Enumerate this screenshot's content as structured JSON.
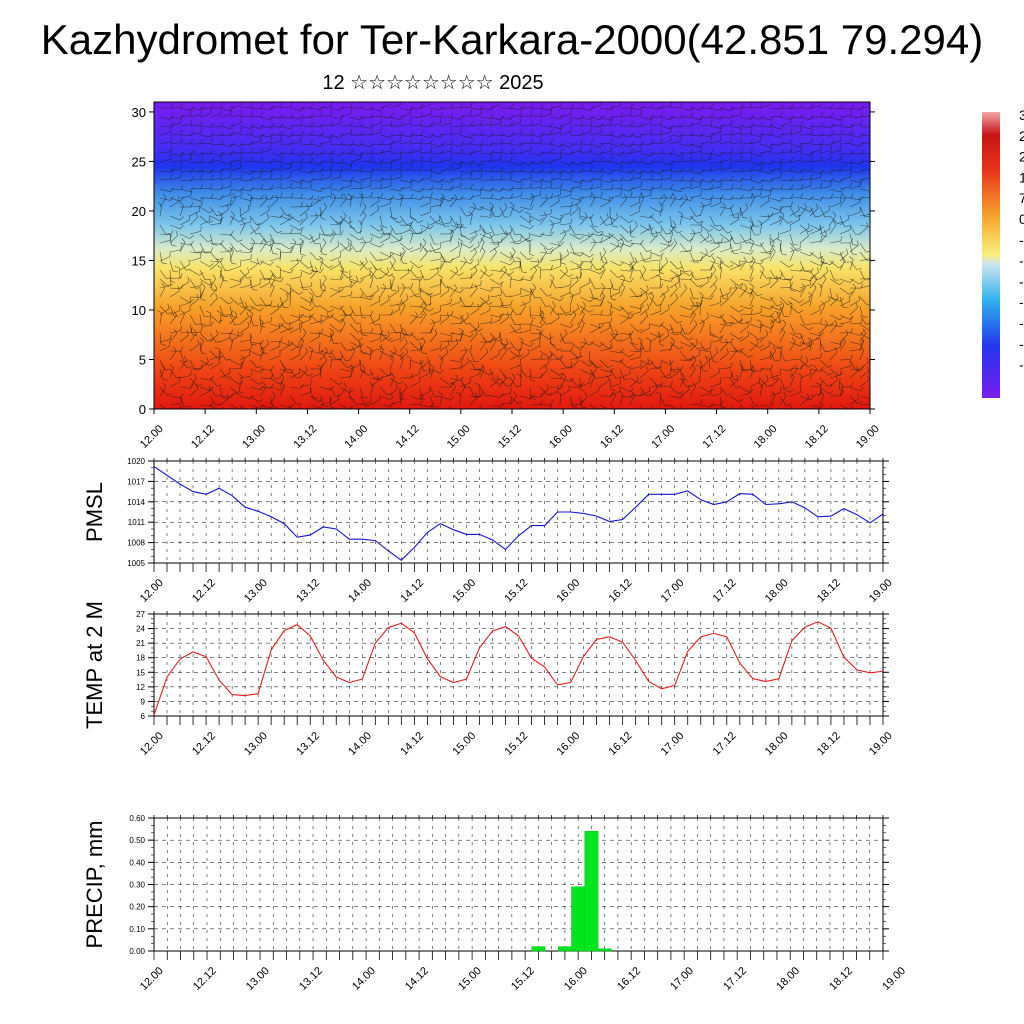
{
  "header": {
    "title": "Kazhydromet for Ter-Karkara-2000(42.851 79.294)",
    "subtitle": "12 ☆☆☆☆☆☆☆☆ 2025"
  },
  "time_ticks": [
    "12.00",
    "12.12",
    "13.00",
    "13.12",
    "14.00",
    "14.12",
    "15.00",
    "15.12",
    "16.00",
    "16.12",
    "17.00",
    "17.12",
    "18.00",
    "18.12",
    "19.00"
  ],
  "chart_data": [
    {
      "type": "heatmap",
      "id": "temp-profile",
      "title": "",
      "xlabel": "",
      "ylabel": "",
      "x": [
        "12.00",
        "12.12",
        "13.00",
        "13.12",
        "14.00",
        "14.12",
        "15.00",
        "15.12",
        "16.00",
        "16.12",
        "17.00",
        "17.12",
        "18.00",
        "18.12",
        "19.00"
      ],
      "ylim": [
        0,
        31
      ],
      "yticks": [
        "0",
        "5",
        "10",
        "15",
        "20",
        "25",
        "30"
      ],
      "colorbar_labels": [
        "3",
        "2",
        "2",
        "1",
        "7",
        "0",
        "-",
        "-",
        "-",
        "-",
        "-",
        "-",
        "-"
      ],
      "overlay": "wind barbs",
      "colors": {
        "purple": "#7a1cf0",
        "blue": "#1e3cf0",
        "light_blue": "#9fd2ee",
        "yellow": "#f7e264",
        "orange": "#f59b2a",
        "red": "#e61e14"
      }
    },
    {
      "type": "line",
      "id": "pmsl",
      "ylabel": "PMSL",
      "ylim": [
        1005,
        1020
      ],
      "yticks": [
        "1005",
        "1008",
        "1011",
        "1014",
        "1017",
        "1020"
      ],
      "line_color": "#1414d2",
      "x_step_hours": 3,
      "values": [
        1019.2,
        1017.9,
        1016.6,
        1015.5,
        1015.1,
        1016.0,
        1014.9,
        1013.2,
        1012.6,
        1011.8,
        1010.8,
        1008.8,
        1009.1,
        1010.3,
        1010.0,
        1008.5,
        1008.5,
        1008.3,
        1006.8,
        1005.4,
        1007.3,
        1009.5,
        1010.8,
        1009.9,
        1009.2,
        1009.2,
        1008.4,
        1007.0,
        1009.0,
        1010.5,
        1010.5,
        1012.5,
        1012.5,
        1012.3,
        1011.9,
        1011.1,
        1011.4,
        1013.2,
        1015.1,
        1015.1,
        1015.1,
        1015.6,
        1014.3,
        1013.6,
        1014.0,
        1015.2,
        1015.1,
        1013.6,
        1013.7,
        1014.0,
        1013.1,
        1011.8,
        1011.9,
        1013.0,
        1012.1,
        1010.9,
        1012.2
      ]
    },
    {
      "type": "line",
      "id": "temp2m",
      "ylabel": "TEMP at 2 M",
      "ylim": [
        6,
        27
      ],
      "yticks": [
        "6",
        "9",
        "12",
        "15",
        "18",
        "21",
        "24",
        "27"
      ],
      "line_color": "#e61e1e",
      "x_step_hours": 3,
      "values": [
        6.2,
        14.0,
        17.7,
        19.2,
        18.2,
        13.4,
        10.4,
        10.2,
        10.6,
        19.6,
        23.6,
        24.8,
        22.5,
        17.5,
        14.0,
        12.9,
        13.6,
        21.0,
        24.2,
        25.1,
        23.1,
        17.8,
        14.1,
        12.9,
        13.6,
        20.0,
        23.5,
        24.4,
        22.5,
        17.9,
        16.1,
        12.4,
        12.9,
        18.3,
        21.8,
        22.3,
        21.2,
        17.4,
        13.1,
        11.6,
        12.3,
        19.3,
        22.3,
        23.0,
        22.3,
        16.9,
        13.7,
        13.1,
        13.7,
        21.5,
        24.3,
        25.4,
        24.1,
        18.1,
        15.5,
        14.9,
        15.2
      ]
    },
    {
      "type": "bar",
      "id": "precip",
      "ylabel": "PRECIP, mm",
      "ylim": [
        0,
        0.6
      ],
      "yticks": [
        "0.00",
        "0.10",
        "0.20",
        "0.30",
        "0.40",
        "0.50",
        "0.60"
      ],
      "bar_color": "#00e61e",
      "x_step_hours": 3,
      "values": [
        0,
        0,
        0,
        0,
        0,
        0,
        0,
        0,
        0,
        0,
        0,
        0,
        0,
        0,
        0,
        0,
        0,
        0,
        0,
        0,
        0,
        0,
        0,
        0,
        0,
        0,
        0,
        0,
        0,
        0.02,
        0,
        0.02,
        0.29,
        0.54,
        0.01,
        0,
        0,
        0,
        0,
        0,
        0,
        0,
        0,
        0,
        0,
        0,
        0,
        0,
        0,
        0,
        0,
        0,
        0,
        0,
        0,
        0
      ]
    }
  ]
}
